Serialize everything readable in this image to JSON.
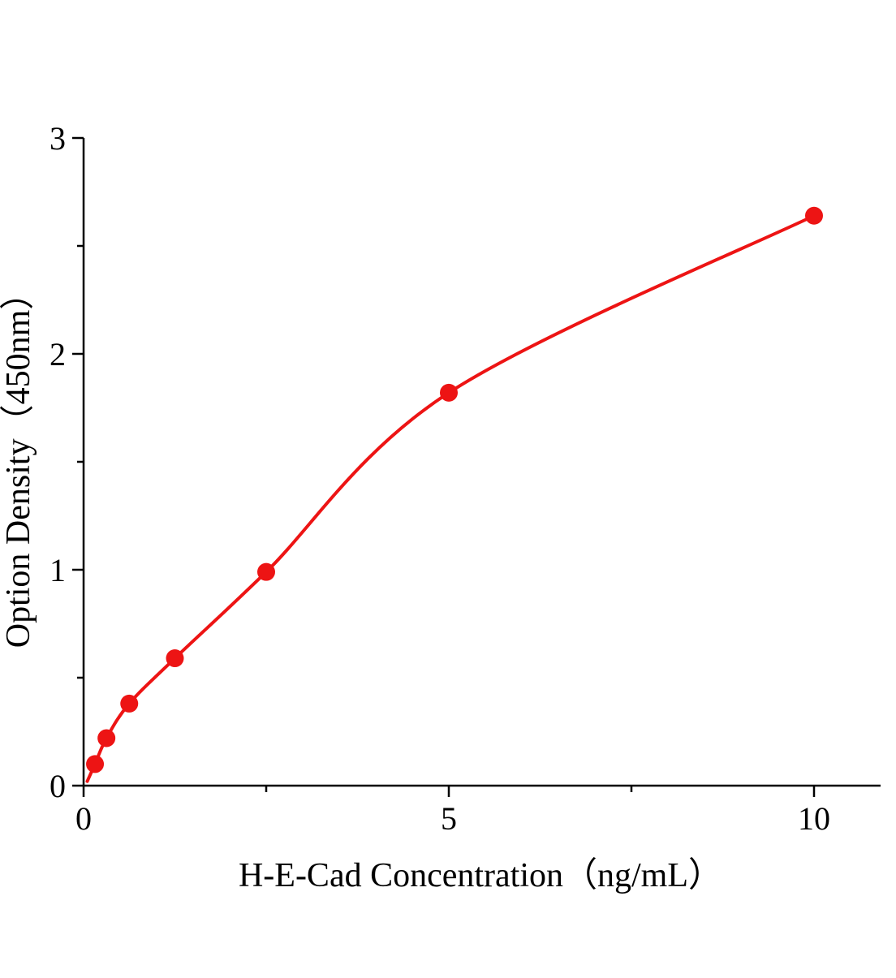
{
  "chart_data": {
    "type": "scatter",
    "title": "",
    "xlabel": "H-E-Cad Concentration（ng/mL）",
    "ylabel": "Option Density（450nm）",
    "x": [
      0.156,
      0.313,
      0.625,
      1.25,
      2.5,
      5,
      10
    ],
    "y": [
      0.1,
      0.22,
      0.38,
      0.59,
      0.99,
      1.82,
      2.64
    ],
    "curve_start": [
      0.05,
      0.02
    ],
    "xlim": [
      0,
      10.9
    ],
    "ylim": [
      0,
      3
    ],
    "x_major_ticks": [
      0,
      5,
      10
    ],
    "x_tick_labels": [
      "0",
      "5",
      "10"
    ],
    "x_minor_ticks": [
      2.5,
      7.5
    ],
    "y_major_ticks": [
      0,
      1,
      2,
      3
    ],
    "y_tick_labels": [
      "0",
      "1",
      "2",
      "3"
    ],
    "y_minor_ticks": [
      0.5,
      1.5,
      2.5
    ],
    "grid": false,
    "legend_position": "none",
    "point_color": "#ed1414",
    "line_color": "#ed1414",
    "axis_color": "#000000"
  }
}
